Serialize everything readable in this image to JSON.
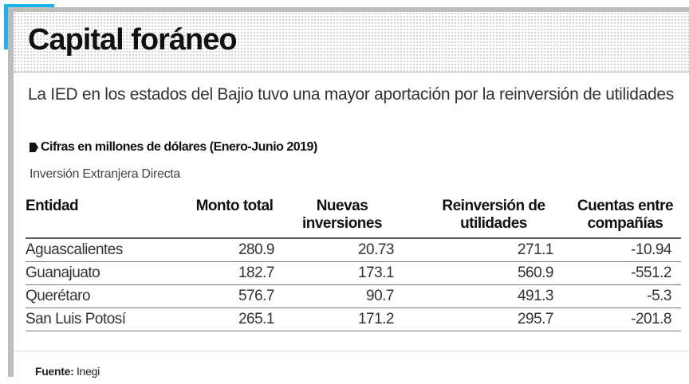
{
  "title": "Capital foráneo",
  "subtitle": "La IED en los estados del Bajio tuvo una mayor aportación por la reinversión de utilidades",
  "units": "Cifras en millones de dólares (Enero-Junio 2019)",
  "table_label": "Inversión Extranjera Directa",
  "colors": {
    "accent": "#1fb2e8",
    "frame": "#bdbdbd"
  },
  "table": {
    "headers": [
      "Entidad",
      "Monto total",
      "Nuevas inversiones",
      "Reinversión de utilidades",
      "Cuentas entre compañías"
    ],
    "rows": [
      [
        "Aguascalientes",
        "280.9",
        "20.73",
        "271.1",
        "-10.94"
      ],
      [
        "Guanajuato",
        "182.7",
        "173.1",
        "560.9",
        "-551.2"
      ],
      [
        "Querétaro",
        "576.7",
        "90.7",
        "491.3",
        "-5.3"
      ],
      [
        "San Luis Potosí",
        "265.1",
        "171.2",
        "295.7",
        "-201.8"
      ]
    ]
  },
  "source": {
    "label": "Fuente:",
    "value": "Inegi"
  }
}
